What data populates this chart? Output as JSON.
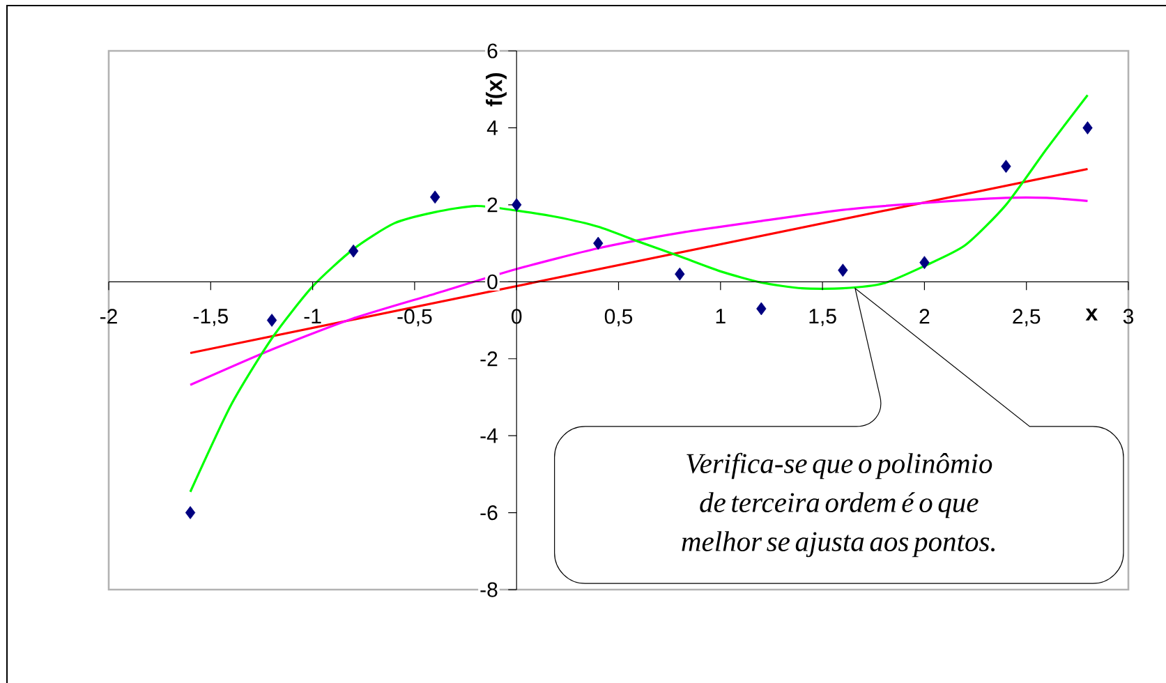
{
  "chart_data": {
    "type": "scatter",
    "xlabel": "x",
    "ylabel": "f(x)",
    "xlim": [
      -2,
      3
    ],
    "ylim": [
      -8,
      6
    ],
    "xticks": [
      {
        "value": -2,
        "label": "-2"
      },
      {
        "value": -1.5,
        "label": "-1,5"
      },
      {
        "value": -1,
        "label": "-1"
      },
      {
        "value": -0.5,
        "label": "-0,5"
      },
      {
        "value": 0,
        "label": "0"
      },
      {
        "value": 0.5,
        "label": "0,5"
      },
      {
        "value": 1,
        "label": "1"
      },
      {
        "value": 1.5,
        "label": "1,5"
      },
      {
        "value": 2,
        "label": "2"
      },
      {
        "value": 2.5,
        "label": "2,5"
      },
      {
        "value": 3,
        "label": "3"
      }
    ],
    "yticks": [
      -8,
      -6,
      -4,
      -2,
      0,
      2,
      4,
      6
    ],
    "grid": false,
    "series": [
      {
        "type": "line",
        "color": "#ff0000",
        "x": [
          -1.6,
          2.8
        ],
        "values": [
          -1.85,
          2.93
        ]
      },
      {
        "type": "line",
        "color": "#ff00ff",
        "x": [
          -1.6,
          -1.2,
          -0.8,
          -0.4,
          0,
          0.4,
          0.8,
          1.2,
          1.6,
          2.0,
          2.4,
          2.6,
          2.8
        ],
        "values": [
          -2.68,
          -1.76,
          -0.95,
          -0.31,
          0.33,
          0.87,
          1.27,
          1.58,
          1.87,
          2.05,
          2.18,
          2.18,
          2.1
        ]
      },
      {
        "type": "line",
        "color": "#00ff00",
        "x": [
          -1.6,
          -1.4,
          -1.2,
          -1.0,
          -0.8,
          -0.6,
          -0.4,
          -0.2,
          0,
          0.2,
          0.4,
          0.6,
          0.8,
          1.0,
          1.2,
          1.4,
          1.6,
          1.8,
          2.0,
          2.2,
          2.4,
          2.6,
          2.8
        ],
        "values": [
          -5.46,
          -3.2,
          -1.47,
          -0.12,
          0.85,
          1.52,
          1.81,
          1.97,
          1.85,
          1.68,
          1.43,
          1.04,
          0.66,
          0.27,
          -0.02,
          -0.17,
          -0.17,
          -0.04,
          0.41,
          0.95,
          2.0,
          3.46,
          4.85
        ]
      },
      {
        "marker": "diamond",
        "color": "#000080",
        "x": [
          -1.6,
          -1.2,
          -0.8,
          -0.4,
          0,
          0.4,
          0.8,
          1.2,
          1.6,
          2.0,
          2.4,
          2.8
        ],
        "values": [
          -6,
          -1,
          0.8,
          2.2,
          2,
          1,
          0.2,
          -0.7,
          0.3,
          0.5,
          3,
          4
        ]
      }
    ],
    "annotations": [
      "Verifica-se que o polinômio de terceira ordem é o que melhor se ajusta aos pontos."
    ]
  }
}
